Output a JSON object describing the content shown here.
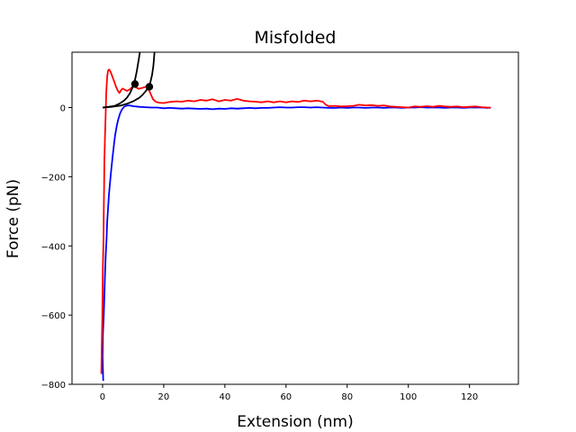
{
  "chart_data": {
    "type": "line",
    "title": "Misfolded",
    "xlabel": "Extension (nm)",
    "ylabel": "Force (pN)",
    "xlim": [
      -10,
      136
    ],
    "ylim": [
      -800,
      160
    ],
    "x_ticks": [
      0,
      20,
      40,
      60,
      80,
      100,
      120
    ],
    "y_ticks": [
      -800,
      -600,
      -400,
      -200,
      0
    ],
    "y_tick_labels": [
      "−800",
      "−600",
      "−400",
      "−200",
      "0"
    ],
    "grid": false,
    "legend": "none",
    "series": [
      {
        "color": "#0000ff",
        "points": [
          [
            0.2,
            -790
          ],
          [
            0.0,
            -720
          ],
          [
            0.1,
            -660
          ],
          [
            0.4,
            -600
          ],
          [
            0.6,
            -540
          ],
          [
            0.8,
            -480
          ],
          [
            1.0,
            -430
          ],
          [
            1.3,
            -380
          ],
          [
            1.5,
            -330
          ],
          [
            1.8,
            -290
          ],
          [
            2.1,
            -250
          ],
          [
            2.5,
            -210
          ],
          [
            2.9,
            -175
          ],
          [
            3.3,
            -140
          ],
          [
            3.7,
            -110
          ],
          [
            4.1,
            -80
          ],
          [
            4.6,
            -55
          ],
          [
            5.1,
            -35
          ],
          [
            5.7,
            -18
          ],
          [
            6.3,
            -6
          ],
          [
            7.0,
            2
          ],
          [
            8,
            6
          ],
          [
            9,
            6
          ],
          [
            10,
            4
          ],
          [
            12,
            2
          ],
          [
            14,
            1
          ],
          [
            16,
            0
          ],
          [
            18,
            0
          ],
          [
            20,
            -2
          ],
          [
            22,
            -1
          ],
          [
            24,
            -2
          ],
          [
            26,
            -3
          ],
          [
            28,
            -2
          ],
          [
            30,
            -3
          ],
          [
            32,
            -4
          ],
          [
            34,
            -3
          ],
          [
            36,
            -5
          ],
          [
            38,
            -3
          ],
          [
            40,
            -4
          ],
          [
            42,
            -2
          ],
          [
            44,
            -3
          ],
          [
            46,
            -2
          ],
          [
            48,
            -1
          ],
          [
            50,
            -2
          ],
          [
            52,
            -1
          ],
          [
            54,
            -1
          ],
          [
            56,
            0
          ],
          [
            58,
            1
          ],
          [
            60,
            0
          ],
          [
            62,
            0
          ],
          [
            64,
            1
          ],
          [
            66,
            1
          ],
          [
            68,
            0
          ],
          [
            70,
            1
          ],
          [
            72,
            0
          ],
          [
            74,
            -1
          ],
          [
            76,
            -1
          ],
          [
            78,
            0
          ],
          [
            80,
            -1
          ],
          [
            82,
            0
          ],
          [
            84,
            0
          ],
          [
            86,
            -1
          ],
          [
            88,
            0
          ],
          [
            90,
            0
          ],
          [
            92,
            -1
          ],
          [
            94,
            0
          ],
          [
            96,
            0
          ],
          [
            98,
            -1
          ],
          [
            100,
            0
          ],
          [
            102,
            0
          ],
          [
            104,
            1
          ],
          [
            106,
            0
          ],
          [
            108,
            0
          ],
          [
            110,
            0
          ],
          [
            112,
            -1
          ],
          [
            114,
            0
          ],
          [
            116,
            0
          ],
          [
            118,
            -1
          ],
          [
            120,
            0
          ],
          [
            122,
            0
          ],
          [
            124,
            0
          ],
          [
            126,
            -1
          ],
          [
            127,
            0
          ]
        ]
      },
      {
        "color": "#ff0000",
        "points": [
          [
            -0.4,
            -770
          ],
          [
            -0.3,
            -700
          ],
          [
            -0.1,
            -620
          ],
          [
            0.0,
            -540
          ],
          [
            0.1,
            -460
          ],
          [
            0.3,
            -380
          ],
          [
            0.4,
            -300
          ],
          [
            0.5,
            -220
          ],
          [
            0.6,
            -150
          ],
          [
            0.8,
            -80
          ],
          [
            1.0,
            -20
          ],
          [
            1.2,
            40
          ],
          [
            1.5,
            90
          ],
          [
            1.8,
            107
          ],
          [
            2.1,
            110
          ],
          [
            2.6,
            104
          ],
          [
            3.2,
            90
          ],
          [
            3.8,
            75
          ],
          [
            4.4,
            60
          ],
          [
            5.0,
            48
          ],
          [
            5.5,
            42
          ],
          [
            6.0,
            50
          ],
          [
            6.5,
            55
          ],
          [
            7.2,
            52
          ],
          [
            8.0,
            48
          ],
          [
            8.8,
            52
          ],
          [
            9.6,
            58
          ],
          [
            10.4,
            62
          ],
          [
            11.0,
            58
          ],
          [
            11.8,
            54
          ],
          [
            12.6,
            56
          ],
          [
            13.4,
            58
          ],
          [
            14.2,
            60
          ],
          [
            15.0,
            54
          ],
          [
            15.7,
            40
          ],
          [
            16.5,
            24
          ],
          [
            17.5,
            16
          ],
          [
            18.5,
            14
          ],
          [
            20,
            13
          ],
          [
            22,
            16
          ],
          [
            24,
            18
          ],
          [
            26,
            17
          ],
          [
            28,
            20
          ],
          [
            30,
            18
          ],
          [
            32,
            22
          ],
          [
            34,
            20
          ],
          [
            36,
            24
          ],
          [
            38,
            18
          ],
          [
            40,
            22
          ],
          [
            42,
            20
          ],
          [
            44,
            25
          ],
          [
            46,
            20
          ],
          [
            48,
            18
          ],
          [
            50,
            17
          ],
          [
            52,
            15
          ],
          [
            54,
            18
          ],
          [
            56,
            15
          ],
          [
            58,
            18
          ],
          [
            60,
            15
          ],
          [
            62,
            18
          ],
          [
            64,
            16
          ],
          [
            66,
            20
          ],
          [
            68,
            18
          ],
          [
            70,
            20
          ],
          [
            72,
            17
          ],
          [
            73,
            8
          ],
          [
            74,
            4
          ],
          [
            76,
            5
          ],
          [
            78,
            3
          ],
          [
            80,
            4
          ],
          [
            82,
            5
          ],
          [
            84,
            8
          ],
          [
            86,
            6
          ],
          [
            88,
            7
          ],
          [
            90,
            5
          ],
          [
            92,
            6
          ],
          [
            94,
            3
          ],
          [
            96,
            2
          ],
          [
            98,
            1
          ],
          [
            100,
            0
          ],
          [
            102,
            3
          ],
          [
            104,
            2
          ],
          [
            106,
            4
          ],
          [
            108,
            2
          ],
          [
            110,
            5
          ],
          [
            112,
            3
          ],
          [
            114,
            2
          ],
          [
            116,
            3
          ],
          [
            118,
            1
          ],
          [
            120,
            2
          ],
          [
            122,
            3
          ],
          [
            124,
            1
          ],
          [
            126,
            0
          ],
          [
            127,
            -1
          ]
        ]
      },
      {
        "color": "#000000",
        "points": [
          [
            0,
            0
          ],
          [
            2,
            2
          ],
          [
            4,
            5
          ],
          [
            5,
            9
          ],
          [
            6,
            14
          ],
          [
            7,
            20
          ],
          [
            8,
            29
          ],
          [
            9,
            42
          ],
          [
            10,
            62
          ],
          [
            10.6,
            80
          ],
          [
            11.2,
            105
          ],
          [
            11.8,
            138
          ],
          [
            12.2,
            160
          ]
        ]
      },
      {
        "color": "#000000",
        "points": [
          [
            0,
            0
          ],
          [
            3,
            2
          ],
          [
            6,
            6
          ],
          [
            8,
            11
          ],
          [
            10,
            18
          ],
          [
            12,
            28
          ],
          [
            13,
            36
          ],
          [
            14,
            46
          ],
          [
            15,
            58
          ],
          [
            15.6,
            72
          ],
          [
            16.2,
            95
          ],
          [
            16.6,
            120
          ],
          [
            17.0,
            160
          ]
        ]
      }
    ],
    "markers": [
      {
        "x": 10.6,
        "y": 68,
        "color": "#000000"
      },
      {
        "x": 15.3,
        "y": 60,
        "color": "#000000"
      }
    ]
  }
}
